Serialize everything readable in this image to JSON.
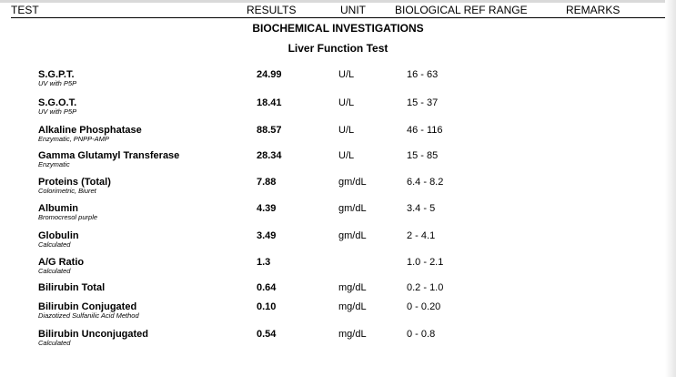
{
  "header": {
    "test": "TEST",
    "results": "RESULTS",
    "unit": "UNIT",
    "ref_range": "BIOLOGICAL REF RANGE",
    "remarks": "REMARKS"
  },
  "section": {
    "title": "BIOCHEMICAL INVESTIGATIONS",
    "subtitle": "Liver Function Test"
  },
  "rows": [
    {
      "name": "S.G.P.T.",
      "method": "UV with P5P",
      "result": "24.99",
      "unit": "U/L",
      "ref": "16 - 63"
    },
    {
      "name": "S.G.O.T.",
      "method": "UV with P5P",
      "result": "18.41",
      "unit": "U/L",
      "ref": "15 - 37"
    },
    {
      "name": "Alkaline Phosphatase",
      "method": "Enzymatic, PNPP-AMP",
      "result": "88.57",
      "unit": "U/L",
      "ref": "46 - 116"
    },
    {
      "name": "Gamma  Glutamyl Transferase",
      "method": "Enzymatic",
      "result": "28.34",
      "unit": "U/L",
      "ref": "15 - 85"
    },
    {
      "name": "Proteins (Total)",
      "method": "Colorimetric, Biuret",
      "result": "7.88",
      "unit": "gm/dL",
      "ref": "6.4 - 8.2"
    },
    {
      "name": "Albumin",
      "method": "Bromocresol purple",
      "result": "4.39",
      "unit": "gm/dL",
      "ref": "3.4 - 5"
    },
    {
      "name": "Globulin",
      "method": "Calculated",
      "result": "3.49",
      "unit": "gm/dL",
      "ref": "2 - 4.1"
    },
    {
      "name": "A/G Ratio",
      "method": "Calculated",
      "result": "1.3",
      "unit": "",
      "ref": "1.0 - 2.1"
    },
    {
      "name": "Bilirubin Total",
      "method": "",
      "result": "0.64",
      "unit": "mg/dL",
      "ref": "0.2 - 1.0"
    },
    {
      "name": "Bilirubin Conjugated",
      "method": "Diazotized Sulfanilic Acid Method",
      "result": "0.10",
      "unit": "mg/dL",
      "ref": "0 - 0.20"
    },
    {
      "name": "Bilirubin Unconjugated",
      "method": "Calculated",
      "result": "0.54",
      "unit": "mg/dL",
      "ref": "0 - 0.8"
    }
  ]
}
